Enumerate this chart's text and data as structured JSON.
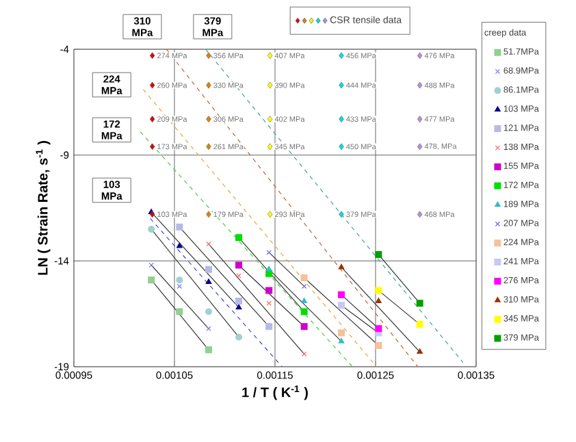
{
  "chart_data": {
    "type": "scatter",
    "xlabel": "1 / T ( K$^{-1}$ )",
    "ylabel": "LN ( Strain Rate,  s$^{-1}$ )",
    "legend_title": "creep data",
    "legend": "right",
    "grid": true,
    "xlim": [
      0.00095,
      0.00135
    ],
    "ylim": [
      -19,
      -4
    ],
    "xticks": [
      0.00095,
      0.00105,
      0.00115,
      0.00125,
      0.00135
    ],
    "yticks": [
      -19,
      -14,
      -9,
      -4
    ],
    "annotations": [
      "310 MPa",
      "379 MPa",
      "224 MPa",
      "172 MPa",
      "103 MPa",
      {
        "text": "274 MPa",
        "x": 0.001028,
        "y": -4.3
      },
      {
        "text": "356 MPa",
        "x": 0.001084,
        "y": -4.3
      },
      {
        "text": "407 MPa",
        "x": 0.001145,
        "y": -4.3
      },
      {
        "text": "456 MPa",
        "x": 0.001216,
        "y": -4.3
      },
      {
        "text": "476 MPa",
        "x": 0.001294,
        "y": -4.3
      },
      {
        "text": "260 MPa",
        "x": 0.001028,
        "y": -5.7
      },
      {
        "text": "330 MPa",
        "x": 0.001084,
        "y": -5.7
      },
      {
        "text": "390 MPa",
        "x": 0.001145,
        "y": -5.7
      },
      {
        "text": "444 MPa",
        "x": 0.001216,
        "y": -5.7
      },
      {
        "text": "488 MPa",
        "x": 0.001294,
        "y": -5.7
      },
      {
        "text": "209 MPa",
        "x": 0.001028,
        "y": -7.3
      },
      {
        "text": "306 MPa",
        "x": 0.001084,
        "y": -7.3
      },
      {
        "text": "402 MPa",
        "x": 0.001145,
        "y": -7.3
      },
      {
        "text": "433 MPa",
        "x": 0.001216,
        "y": -7.3
      },
      {
        "text": "477 MPa",
        "x": 0.001294,
        "y": -7.3
      },
      {
        "text": "173 MPa",
        "x": 0.001028,
        "y": -8.6
      },
      {
        "text": "261 MPa",
        "x": 0.001084,
        "y": -8.6
      },
      {
        "text": "345 MPa",
        "x": 0.001145,
        "y": -8.6
      },
      {
        "text": "450 MPa",
        "x": 0.001216,
        "y": -8.6
      },
      {
        "text": "478, MPa",
        "x": 0.001294,
        "y": -8.6
      },
      {
        "text": "103 MPa",
        "x": 0.001028,
        "y": -11.8
      },
      {
        "text": "179 MPa",
        "x": 0.001084,
        "y": -11.8
      },
      {
        "text": "293 MPa",
        "x": 0.001145,
        "y": -11.8
      },
      {
        "text": "379 MPa",
        "x": 0.001216,
        "y": -11.8
      },
      {
        "text": "468 MPa",
        "x": 0.001294,
        "y": -11.8
      }
    ],
    "series": [
      {
        "type": "line",
        "line_style": "dashed",
        "color": "#4040e0",
        "x": [
          0.001026,
          0.001157
        ],
        "values": [
          -12,
          -19
        ]
      },
      {
        "type": "line",
        "line_style": "dashed",
        "color": "#40d040",
        "x": [
          0.001016,
          0.001227
        ],
        "values": [
          -7.9,
          -19
        ]
      },
      {
        "type": "line",
        "line_style": "dashed",
        "color": "#f0a040",
        "x": [
          0.001019,
          0.001251
        ],
        "values": [
          -5.9,
          -19
        ]
      },
      {
        "type": "line",
        "line_style": "dashed",
        "color": "#c06040",
        "x": [
          0.001042,
          0.001292
        ],
        "values": [
          -4,
          -19
        ]
      },
      {
        "type": "line",
        "line_style": "dashed",
        "color": "#40a0a0",
        "x": [
          0.001081,
          0.001337
        ],
        "values": [
          -4,
          -18.8
        ]
      },
      {
        "type": "line",
        "line_style": "solid",
        "color": "#333333",
        "x": [
          0.001027,
          0.001084
        ],
        "values": [
          -14.9,
          -18.2
        ]
      },
      {
        "type": "line",
        "line_style": "solid",
        "color": "#333333",
        "x": [
          0.001027,
          0.001084
        ],
        "values": [
          -14.2,
          -17.2
        ]
      },
      {
        "type": "line",
        "line_style": "solid",
        "color": "#333333",
        "x": [
          0.001027,
          0.001114
        ],
        "values": [
          -12.5,
          -17.6
        ]
      },
      {
        "type": "line",
        "line_style": "solid",
        "color": "#333333",
        "x": [
          0.001027,
          0.001114
        ],
        "values": [
          -11.7,
          -16.2
        ]
      },
      {
        "type": "line",
        "line_style": "solid",
        "color": "#333333",
        "x": [
          0.001055,
          0.001144
        ],
        "values": [
          -12.4,
          -17.1
        ]
      },
      {
        "type": "line",
        "line_style": "solid",
        "color": "#333333",
        "x": [
          0.001084,
          0.001179
        ],
        "values": [
          -13.2,
          -18.4
        ]
      },
      {
        "type": "line",
        "line_style": "solid",
        "color": "#333333",
        "x": [
          0.001114,
          0.001179
        ],
        "values": [
          -14.2,
          -17.1
        ]
      },
      {
        "type": "line",
        "line_style": "solid",
        "color": "#333333",
        "x": [
          0.001114,
          0.001179
        ],
        "values": [
          -12.9,
          -16.4
        ]
      },
      {
        "type": "line",
        "line_style": "solid",
        "color": "#333333",
        "x": [
          0.001144,
          0.001216
        ],
        "values": [
          -14.4,
          -17.8
        ]
      },
      {
        "type": "line",
        "line_style": "solid",
        "color": "#333333",
        "x": [
          0.001144,
          0.001179
        ],
        "values": [
          -13.6,
          -15.2
        ]
      },
      {
        "type": "line",
        "line_style": "solid",
        "color": "#333333",
        "x": [
          0.001179,
          0.001253
        ],
        "values": [
          -14.8,
          -18
        ]
      },
      {
        "type": "line",
        "line_style": "solid",
        "color": "#333333",
        "x": [
          0.001216,
          0.001253
        ],
        "values": [
          -16.1,
          -17.4
        ]
      },
      {
        "type": "line",
        "line_style": "solid",
        "color": "#333333",
        "x": [
          0.001216,
          0.001253
        ],
        "values": [
          -15.6,
          -17.2
        ]
      },
      {
        "type": "line",
        "line_style": "solid",
        "color": "#333333",
        "x": [
          0.001216,
          0.001294
        ],
        "values": [
          -14.3,
          -18.3
        ]
      },
      {
        "type": "line",
        "line_style": "solid",
        "color": "#333333",
        "x": [
          0.001253,
          0.001294
        ],
        "values": [
          -15.4,
          -17
        ]
      },
      {
        "type": "line",
        "line_style": "solid",
        "color": "#333333",
        "x": [
          0.001253,
          0.001294
        ],
        "values": [
          -13.7,
          -16
        ]
      },
      {
        "name": "51.7MPa",
        "marker": "square",
        "color": "#90d090",
        "x": [
          0.001027,
          0.001055,
          0.001084
        ],
        "values": [
          -14.9,
          -16.4,
          -18.2
        ]
      },
      {
        "name": "68.9MPa",
        "marker": "cross",
        "color": "#7070ff",
        "x": [
          0.001027,
          0.001055,
          0.001084
        ],
        "values": [
          -14.2,
          -15.2,
          -17.2
        ]
      },
      {
        "name": "86.1MPa",
        "marker": "circle",
        "color": "#a0d0d0",
        "x": [
          0.001027,
          0.001055,
          0.001084,
          0.001114
        ],
        "values": [
          -12.5,
          -14.9,
          -16.4,
          -17.6
        ]
      },
      {
        "name": "103 MPa",
        "marker": "triangle",
        "color": "#000099",
        "x": [
          0.001027,
          0.001055,
          0.001084,
          0.001114
        ],
        "values": [
          -11.7,
          -13.3,
          -15,
          -16.2
        ]
      },
      {
        "name": "121 MPa",
        "marker": "square",
        "color": "#b8b8e8",
        "x": [
          0.001055,
          0.001084,
          0.001114,
          0.001144
        ],
        "values": [
          -12.4,
          -14.4,
          -15.9,
          -17.1
        ]
      },
      {
        "name": "138 MPa",
        "marker": "cross",
        "color": "#ff6060",
        "x": [
          0.001084,
          0.001114,
          0.001144,
          0.001179
        ],
        "values": [
          -13.2,
          -14.7,
          -16,
          -18.4
        ]
      },
      {
        "name": "155 MPa",
        "marker": "square",
        "color": "#cc00cc",
        "x": [
          0.001114,
          0.001144,
          0.001179
        ],
        "values": [
          -14.2,
          -15.4,
          -17.1
        ]
      },
      {
        "name": "172 MPa",
        "marker": "square",
        "color": "#00dd00",
        "x": [
          0.001114,
          0.001144,
          0.001179
        ],
        "values": [
          -12.9,
          -14.6,
          -16.4
        ]
      },
      {
        "name": "189 MPa",
        "marker": "triangle",
        "color": "#33bbcc",
        "x": [
          0.001144,
          0.001179,
          0.001216
        ],
        "values": [
          -14.4,
          -15.9,
          -17.8
        ]
      },
      {
        "name": "207 MPa",
        "marker": "cross",
        "color": "#6666ff",
        "x": [
          0.001144,
          0.001179
        ],
        "values": [
          -13.6,
          -15.2
        ]
      },
      {
        "name": "224 MPa",
        "marker": "square",
        "color": "#f5c09a",
        "x": [
          0.001179,
          0.001216,
          0.001253
        ],
        "values": [
          -14.8,
          -17.4,
          -18
        ]
      },
      {
        "name": "241 MPa",
        "marker": "square",
        "color": "#c8c8f0",
        "x": [
          0.001216,
          0.001253
        ],
        "values": [
          -16.1,
          -17.4
        ]
      },
      {
        "name": "276 MPa",
        "marker": "square",
        "color": "#ff00ff",
        "x": [
          0.001216,
          0.001253
        ],
        "values": [
          -15.6,
          -17.2
        ]
      },
      {
        "name": "310 MPa",
        "marker": "triangle",
        "color": "#993300",
        "x": [
          0.001216,
          0.001253,
          0.001294
        ],
        "values": [
          -14.3,
          -15.9,
          -18.3
        ]
      },
      {
        "name": "345 MPa",
        "marker": "square",
        "color": "#ffff00",
        "x": [
          0.001253,
          0.001294
        ],
        "values": [
          -15.4,
          -17
        ]
      },
      {
        "name": "379 MPa",
        "marker": "square",
        "color": "#00a000",
        "x": [
          0.001253,
          0.001294
        ],
        "values": [
          -13.7,
          -16
        ]
      },
      {
        "name": "CSR tensile data",
        "marker": "diamond",
        "x": [
          0.001028,
          0.001084,
          0.001145,
          0.001216,
          0.001294,
          0.001028,
          0.001084,
          0.001145,
          0.001216,
          0.001294,
          0.001028,
          0.001084,
          0.001145,
          0.001216,
          0.001294,
          0.001028,
          0.001084,
          0.001145,
          0.001216,
          0.001294,
          0.001028,
          0.001084,
          0.001145,
          0.001216,
          0.001294
        ],
        "values": [
          -4.3,
          -4.3,
          -4.3,
          -4.3,
          -4.3,
          -5.7,
          -5.7,
          -5.7,
          -5.7,
          -5.7,
          -7.3,
          -7.3,
          -7.3,
          -7.3,
          -7.3,
          -8.6,
          -8.6,
          -8.6,
          -8.6,
          -8.6,
          -11.8,
          -11.8,
          -11.8,
          -11.8,
          -11.8
        ],
        "colors": [
          "#dd0000",
          "#e08000",
          "#ffff00",
          "#00dddd",
          "#b090e0",
          "#dd0000",
          "#e08000",
          "#ffff00",
          "#00dddd",
          "#b090e0",
          "#dd0000",
          "#e08000",
          "#ffff00",
          "#00dddd",
          "#b090e0",
          "#dd0000",
          "#e08000",
          "#ffff00",
          "#00dddd",
          "#b090e0",
          "#dd0000",
          "#e08000",
          "#ffff00",
          "#00dddd",
          "#b090e0"
        ]
      }
    ]
  }
}
